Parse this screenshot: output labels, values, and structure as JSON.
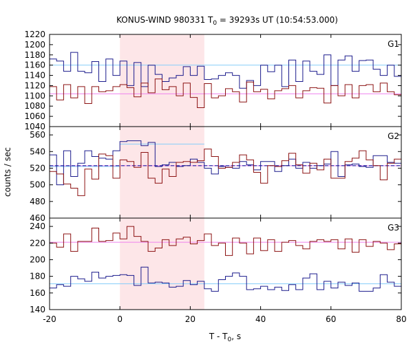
{
  "chart_data": {
    "type": "line",
    "title": "KONUS-WIND 980331 T",
    "title_sub": "0",
    "title_rest": " = 39293s UT (10:54:53.000)",
    "xlabel": "T - T",
    "xlabel_sub": "0",
    "xlabel_rest": ", s",
    "ylabel": "counts / sec",
    "xlim": [
      -20,
      80
    ],
    "x_ticks": [
      "-20",
      "0",
      "20",
      "40",
      "60",
      "80"
    ],
    "highlight_interval": [
      0,
      24
    ],
    "colors": {
      "highlight": "#fde6e8",
      "blue_series": "#1a1a8c",
      "red_series": "#8b1010",
      "blue_background": "#87cefa",
      "red_background": "#ee82ee",
      "g2_background": "#2020a0"
    },
    "bin_start": -20,
    "bin_width": 2,
    "panels": [
      {
        "label": "G1",
        "ylim": [
          1040,
          1220
        ],
        "y_ticks": [
          "1040",
          "1060",
          "1080",
          "1100",
          "1120",
          "1140",
          "1160",
          "1180",
          "1200",
          "1220"
        ],
        "background_levels": [
          {
            "color_key": "blue_background",
            "x": [
              -20,
              80
            ],
            "y": 1160
          },
          {
            "color_key": "red_background",
            "x": [
              -20,
              80
            ],
            "y": 1104
          }
        ],
        "series": [
          {
            "color_key": "blue_series",
            "values": [
              1172,
              1168,
              1148,
              1185,
              1148,
              1145,
              1167,
              1128,
              1172,
              1140,
              1168,
              1120,
              1165,
              1118,
              1160,
              1142,
              1128,
              1135,
              1140,
              1157,
              1140,
              1158,
              1132,
              1133,
              1140,
              1145,
              1140,
              1115,
              1130,
              1120,
              1160,
              1147,
              1160,
              1118,
              1170,
              1128,
              1168,
              1148,
              1142,
              1180,
              1120,
              1170,
              1178,
              1148,
              1169,
              1170,
              1152,
              1140,
              1160,
              1138,
              1150
            ]
          },
          {
            "color_key": "red_series",
            "values": [
              1118,
              1092,
              1122,
              1096,
              1118,
              1085,
              1118,
              1108,
              1110,
              1118,
              1122,
              1116,
              1098,
              1125,
              1106,
              1133,
              1112,
              1118,
              1100,
              1125,
              1097,
              1077,
              1124,
              1096,
              1100,
              1114,
              1108,
              1088,
              1127,
              1108,
              1113,
              1094,
              1110,
              1114,
              1120,
              1096,
              1110,
              1116,
              1115,
              1086,
              1120,
              1100,
              1122,
              1096,
              1120,
              1122,
              1108,
              1125,
              1108,
              1102,
              1123
            ]
          }
        ]
      },
      {
        "label": "G2",
        "ylim": [
          460,
          570
        ],
        "y_ticks": [
          "460",
          "480",
          "500",
          "520",
          "540",
          "560"
        ],
        "background_levels": [
          {
            "color_key": "blue_background",
            "x": [
              0,
              24
            ],
            "y": 549
          },
          {
            "color_key": "blue_background",
            "x": [
              -20,
              0
            ],
            "y": 522
          },
          {
            "color_key": "blue_background",
            "x": [
              24,
              80
            ],
            "y": 523
          },
          {
            "color_key": "red_background",
            "x": [
              -20,
              80
            ],
            "y": 523
          },
          {
            "color_key": "g2_background",
            "x": [
              -20,
              80
            ],
            "y": 523,
            "dashed": true
          }
        ],
        "series": [
          {
            "color_key": "blue_series",
            "values": [
              536,
              500,
              541,
              510,
              526,
              541,
              534,
              532,
              531,
              541,
              552,
              553,
              553,
              547,
              551,
              522,
              524,
              527,
              522,
              523,
              531,
              527,
              520,
              513,
              522,
              521,
              520,
              528,
              524,
              518,
              528,
              528,
              516,
              523,
              531,
              520,
              527,
              520,
              523,
              525,
              540,
              510,
              524,
              525,
              522,
              521,
              535,
              535,
              527,
              526,
              524
            ]
          },
          {
            "color_key": "red_series",
            "values": [
              516,
              513,
              501,
              496,
              487,
              519,
              507,
              537,
              535,
              508,
              530,
              528,
              521,
              539,
              508,
              502,
              519,
              510,
              527,
              528,
              527,
              529,
              543,
              534,
              520,
              521,
              527,
              536,
              530,
              515,
              502,
              523,
              522,
              529,
              538,
              524,
              514,
              526,
              518,
              531,
              508,
              508,
              528,
              532,
              541,
              530,
              523,
              506,
              526,
              531,
              526
            ]
          }
        ]
      },
      {
        "label": "G3",
        "ylim": [
          140,
          250
        ],
        "y_ticks": [
          "140",
          "160",
          "180",
          "200",
          "220",
          "240"
        ],
        "background_levels": [
          {
            "color_key": "red_background",
            "x": [
              -20,
              80
            ],
            "y": 221
          },
          {
            "color_key": "blue_background",
            "x": [
              -20,
              80
            ],
            "y": 171
          }
        ],
        "series": [
          {
            "color_key": "red_series",
            "values": [
              220,
              215,
              231,
              210,
              222,
              222,
              238,
              222,
              223,
              232,
              225,
              240,
              228,
              222,
              210,
              214,
              224,
              217,
              225,
              227,
              219,
              223,
              231,
              217,
              220,
              205,
              226,
              220,
              207,
              226,
              211,
              224,
              210,
              221,
              223,
              217,
              213,
              222,
              224,
              222,
              224,
              213,
              225,
              209,
              224,
              216,
              222,
              220,
              212,
              219,
              221
            ]
          },
          {
            "color_key": "blue_series",
            "values": [
              166,
              170,
              168,
              180,
              177,
              174,
              185,
              178,
              180,
              181,
              182,
              181,
              169,
              191,
              172,
              173,
              172,
              167,
              168,
              175,
              170,
              174,
              165,
              162,
              176,
              180,
              184,
              180,
              164,
              165,
              168,
              164,
              167,
              163,
              170,
              164,
              178,
              183,
              164,
              174,
              166,
              173,
              169,
              172,
              162,
              162,
              166,
              182,
              173,
              168,
              176
            ]
          }
        ]
      }
    ]
  }
}
